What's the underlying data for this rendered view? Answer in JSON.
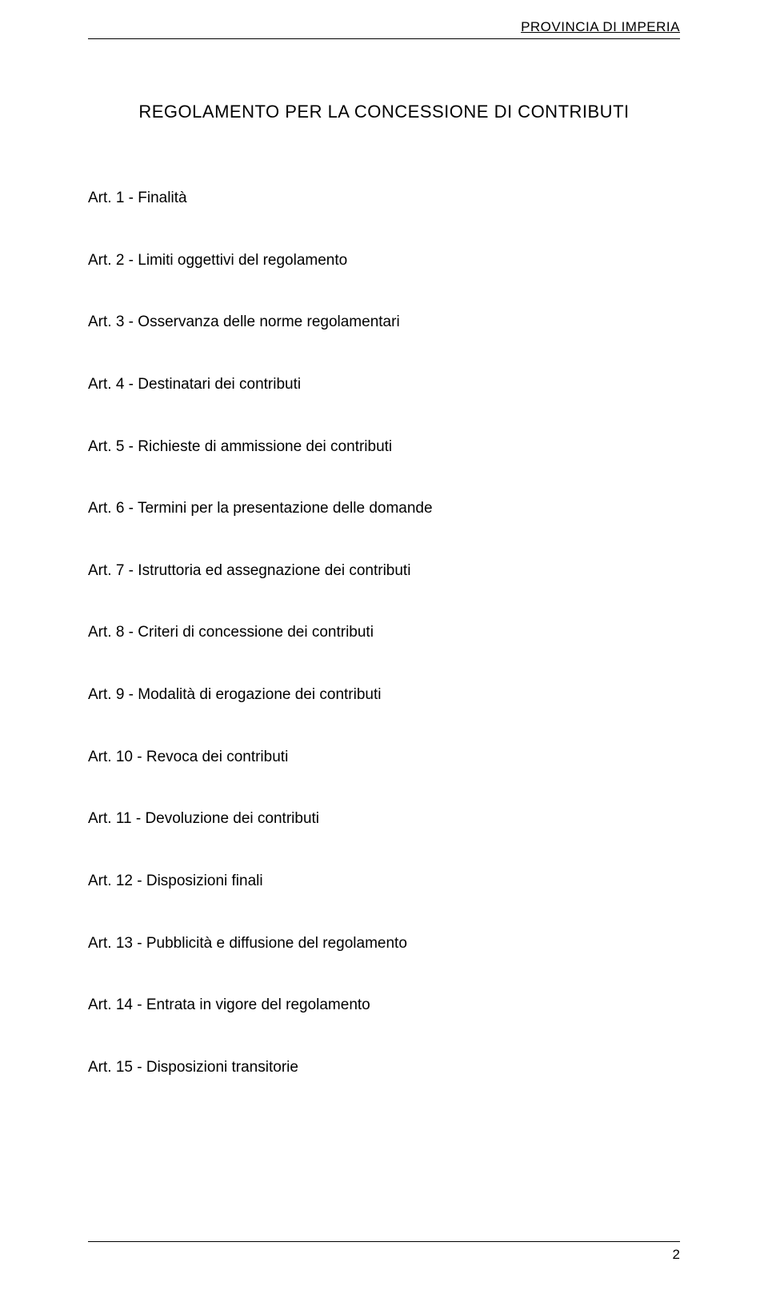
{
  "header": {
    "organization": "PROVINCIA DI IMPERIA"
  },
  "title": "REGOLAMENTO PER LA CONCESSIONE DI CONTRIBUTI",
  "toc": {
    "items": [
      "Art. 1 - Finalità",
      "Art. 2 - Limiti oggettivi del regolamento",
      "Art. 3 - Osservanza delle norme regolamentari",
      "Art. 4 - Destinatari dei contributi",
      "Art. 5 - Richieste di ammissione dei contributi",
      "Art. 6 - Termini per la presentazione delle domande",
      "Art. 7 - Istruttoria ed assegnazione dei contributi",
      "Art. 8 - Criteri di concessione dei contributi",
      "Art. 9 - Modalità di erogazione dei contributi",
      "Art. 10 - Revoca dei contributi",
      "Art. 11 - Devoluzione dei contributi",
      "Art. 12 - Disposizioni finali",
      "Art. 13 - Pubblicità e diffusione del regolamento",
      "Art. 14 - Entrata in vigore del regolamento",
      "Art. 15 - Disposizioni transitorie"
    ]
  },
  "footer": {
    "page_number": "2"
  },
  "style": {
    "background_color": "#ffffff",
    "text_color": "#000000",
    "rule_color": "#000000",
    "font_family": "Comic Sans MS",
    "title_fontsize": 22,
    "body_fontsize": 19,
    "header_fontsize": 17
  }
}
